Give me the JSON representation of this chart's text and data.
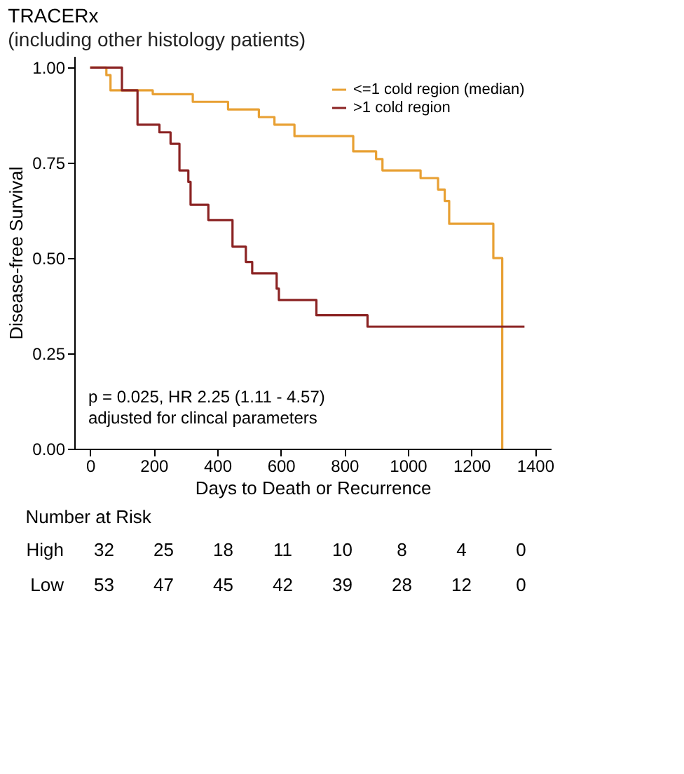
{
  "chart_data": [
    {
      "type": "step",
      "title": "TRACERx",
      "subtitle": "(including other histology patients)",
      "xlabel": "Days to Death or Recurrence",
      "ylabel": "Disease-free Survival",
      "xlim": [
        -50,
        1450
      ],
      "xticks": [
        0,
        200,
        400,
        600,
        800,
        1000,
        1200,
        1400
      ],
      "ylim": [
        0,
        1.03
      ],
      "yticks": [
        {
          "value": 0,
          "label": "0.00"
        },
        {
          "value": 0.25,
          "label": "0.25"
        },
        {
          "value": 0.5,
          "label": "0.50"
        },
        {
          "value": 0.75,
          "label": "0.75"
        },
        {
          "value": 1,
          "label": "1.00"
        }
      ],
      "grid": false,
      "legend": "top right",
      "marker": "none",
      "line_style": "solid",
      "series": [
        {
          "name": "<=1 cold region (median)",
          "color": "#e8a033",
          "x": [
            0,
            51,
            64,
            197,
            323,
            434,
            531,
            580,
            643,
            828,
            900,
            920,
            1040,
            1095,
            1116,
            1130,
            1269,
            1297
          ],
          "values": [
            1.0,
            0.98,
            0.94,
            0.93,
            0.91,
            0.89,
            0.87,
            0.85,
            0.82,
            0.78,
            0.76,
            0.73,
            0.71,
            0.68,
            0.65,
            0.59,
            0.5,
            0.0
          ]
        },
        {
          "name": ">1 cold region",
          "color": "#8b2323",
          "x": [
            0,
            100,
            149,
            218,
            253,
            281,
            309,
            316,
            372,
            448,
            490,
            510,
            587,
            594,
            712,
            873,
            1367
          ],
          "values": [
            1.0,
            0.94,
            0.85,
            0.83,
            0.8,
            0.73,
            0.7,
            0.64,
            0.6,
            0.53,
            0.49,
            0.46,
            0.42,
            0.39,
            0.35,
            0.32,
            0.32
          ]
        }
      ],
      "annotations": [
        "p = 0.025, HR 2.25 (1.11 - 4.57)",
        "adjusted for clincal parameters"
      ]
    },
    {
      "type": "heatmap",
      "title": "Number at Risk",
      "categories": [
        null,
        null,
        null,
        null,
        null,
        null,
        null,
        null
      ],
      "y_categories": [
        "High",
        "Low"
      ],
      "cells": [
        [
          32,
          25,
          18,
          11,
          10,
          8,
          4,
          0
        ],
        [
          53,
          47,
          45,
          42,
          39,
          28,
          12,
          0
        ]
      ],
      "data_labels": true
    }
  ]
}
